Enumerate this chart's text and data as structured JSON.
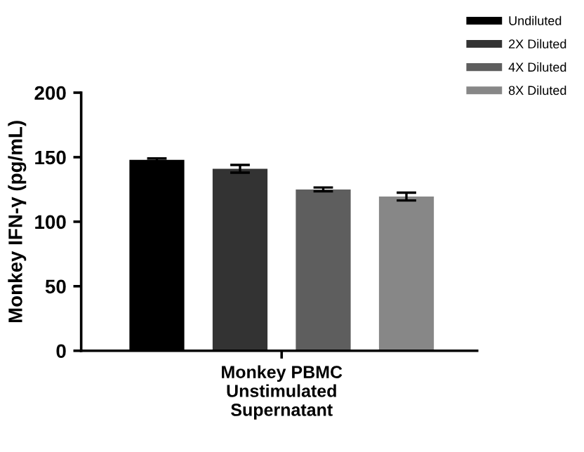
{
  "chart_data": {
    "type": "bar",
    "ylabel": "Monkey IFN-γ (pg/mL)",
    "categories": [
      "Monkey PBMC\nUnstimulated\nSupernatant"
    ],
    "series": [
      {
        "name": "Undiluted",
        "color": "#000000",
        "values": [
          148
        ],
        "errors": [
          1
        ]
      },
      {
        "name": "2X Diluted",
        "color": "#333333",
        "values": [
          141
        ],
        "errors": [
          3
        ]
      },
      {
        "name": "4X Diluted",
        "color": "#5e5e5e",
        "values": [
          125
        ],
        "errors": [
          1.5
        ]
      },
      {
        "name": "8X Diluted",
        "color": "#878787",
        "values": [
          119.5
        ],
        "errors": [
          3
        ]
      }
    ],
    "ylim": [
      0,
      200
    ],
    "yticks": [
      0,
      50,
      100,
      150,
      200
    ],
    "legend": "top right",
    "grid": false
  }
}
